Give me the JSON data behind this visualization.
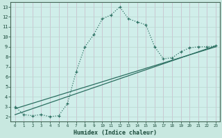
{
  "xlabel": "Humidex (Indice chaleur)",
  "bg_color": "#c8e8e0",
  "plot_bg_color": "#d0eeea",
  "grid_color_v": "#c8b8c8",
  "grid_color_h": "#b8d8d0",
  "line_color": "#2a6e60",
  "curve_x": [
    0,
    1,
    2,
    3,
    4,
    5,
    6,
    7,
    8,
    9,
    10,
    11,
    12,
    13,
    14,
    15,
    16,
    17,
    18,
    19,
    20,
    21,
    22,
    23
  ],
  "curve_y": [
    3.0,
    2.2,
    2.1,
    2.2,
    2.0,
    2.1,
    3.3,
    6.5,
    9.0,
    10.2,
    11.8,
    12.2,
    13.0,
    11.8,
    11.5,
    11.2,
    9.0,
    7.8,
    7.9,
    8.5,
    8.9,
    9.0,
    9.0,
    9.1
  ],
  "line1_x": [
    0,
    23
  ],
  "line1_y": [
    2.8,
    9.0
  ],
  "line2_x": [
    0,
    23
  ],
  "line2_y": [
    2.2,
    9.1
  ],
  "ylim": [
    1.5,
    13.5
  ],
  "xlim": [
    -0.5,
    23.5
  ],
  "yticks": [
    2,
    3,
    4,
    5,
    6,
    7,
    8,
    9,
    10,
    11,
    12,
    13
  ],
  "xticks": [
    0,
    1,
    2,
    3,
    4,
    5,
    6,
    7,
    8,
    9,
    10,
    11,
    12,
    13,
    14,
    15,
    16,
    17,
    18,
    19,
    20,
    21,
    22,
    23
  ]
}
